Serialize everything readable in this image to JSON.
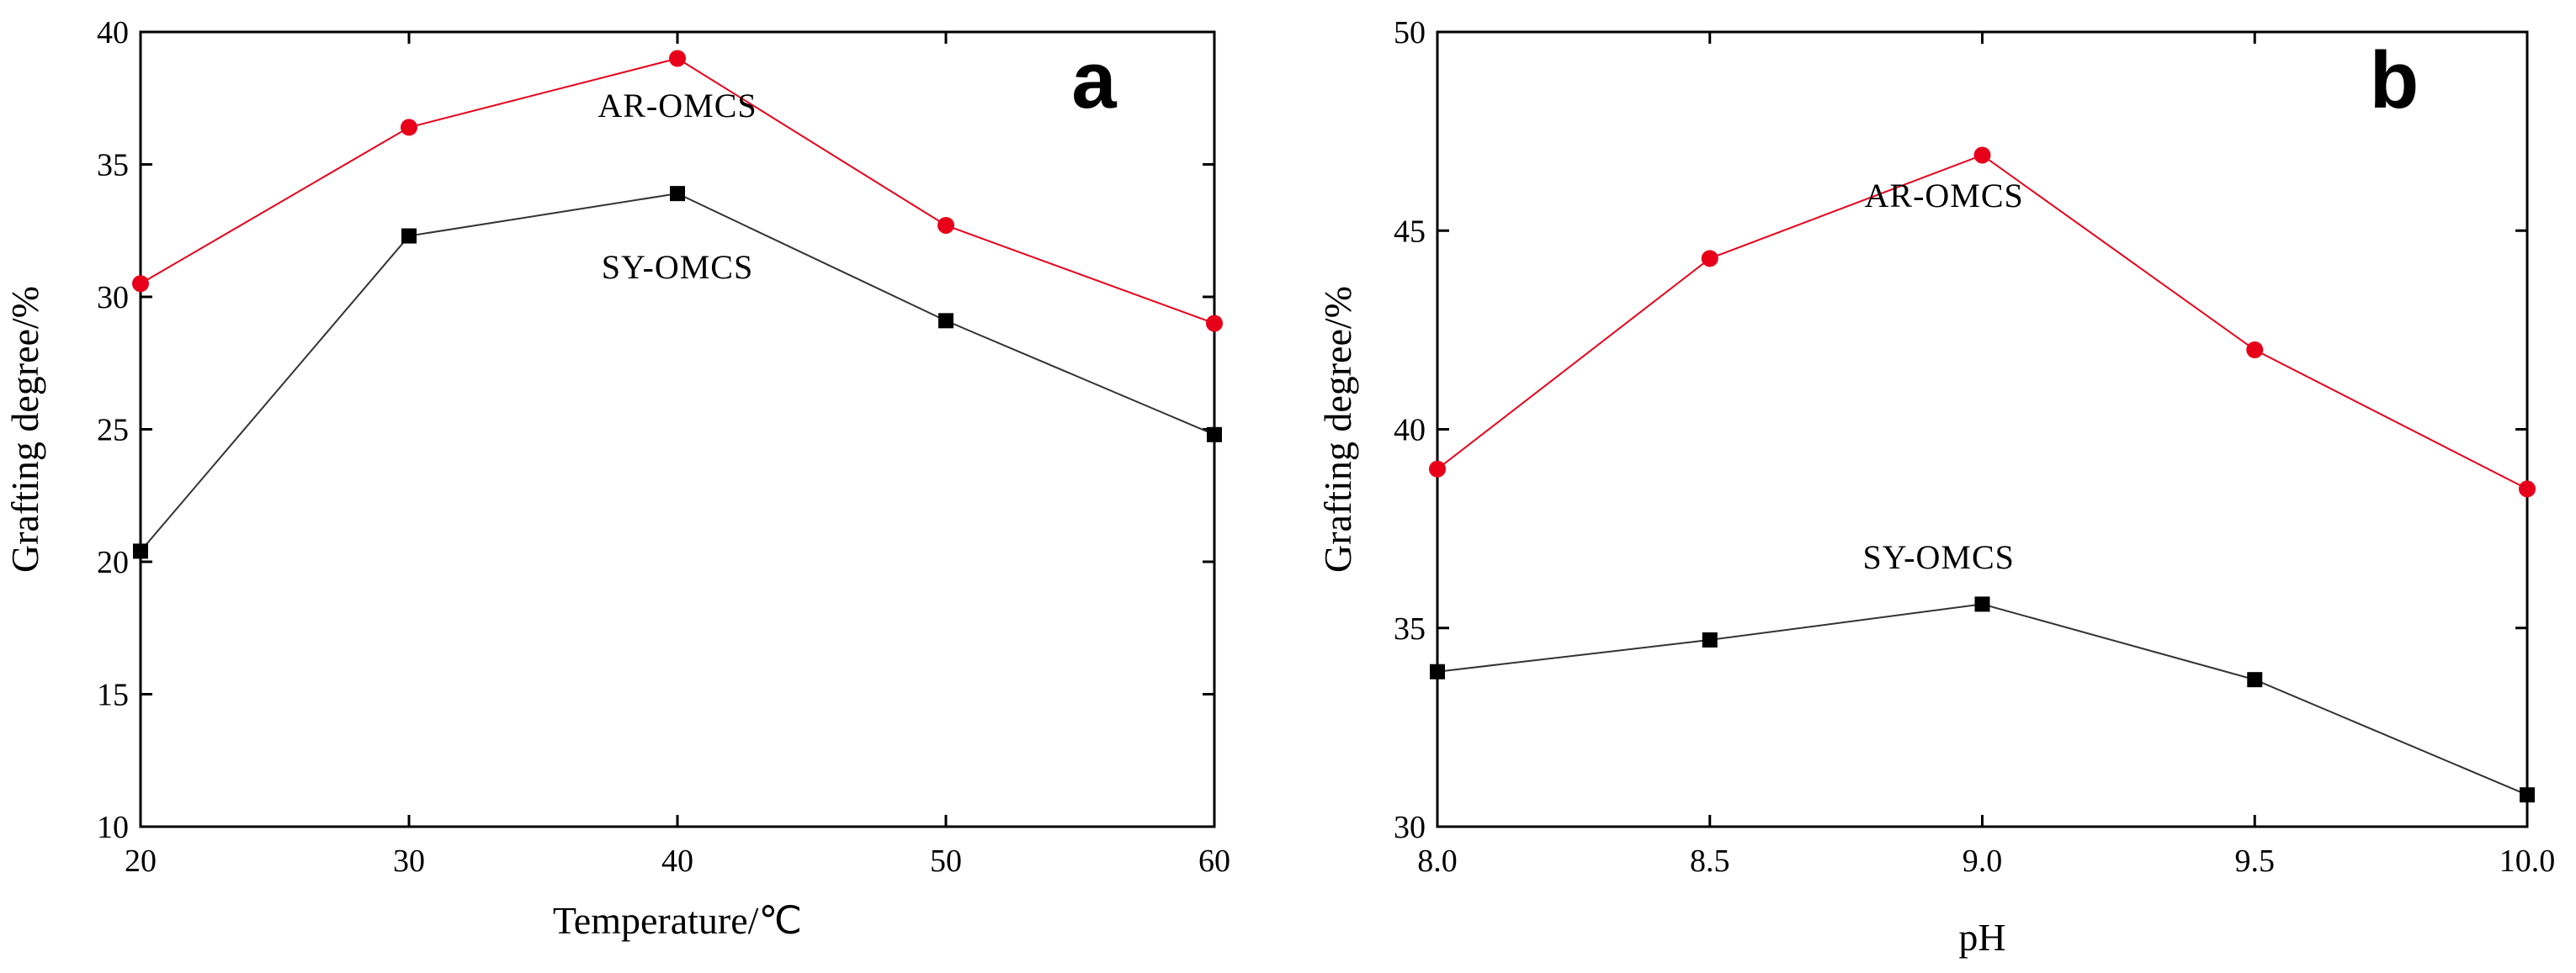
{
  "chart_data": [
    {
      "panel": "a",
      "type": "line",
      "xlabel": "Temperature/℃",
      "ylabel": "Grafting degree/%",
      "xlim": [
        20,
        60
      ],
      "ylim": [
        10,
        40
      ],
      "xticks": [
        20,
        30,
        40,
        50,
        60
      ],
      "yticks": [
        10,
        15,
        20,
        25,
        30,
        35,
        40
      ],
      "x": [
        20,
        30,
        40,
        50,
        60
      ],
      "series": [
        {
          "name": "AR-OMCS",
          "color": "#e8001a",
          "marker": "circle",
          "values": [
            30.5,
            36.4,
            39.0,
            32.7,
            29.0
          ],
          "label_at": [
            40,
            36.8
          ]
        },
        {
          "name": "SY-OMCS",
          "color": "#000000",
          "marker": "square",
          "values": [
            20.4,
            32.3,
            33.9,
            29.1,
            24.8
          ],
          "label_at": [
            40,
            30.7
          ]
        }
      ]
    },
    {
      "panel": "b",
      "type": "line",
      "xlabel": "pH",
      "ylabel": "Grafting degree/%",
      "xlim": [
        8.0,
        10.0
      ],
      "ylim": [
        30,
        50
      ],
      "xticks": [
        "8.0",
        "8.5",
        "9.0",
        "9.5",
        "10.0"
      ],
      "yticks": [
        30,
        35,
        40,
        45,
        50
      ],
      "x": [
        8.0,
        8.5,
        9.0,
        9.5,
        10.0
      ],
      "series": [
        {
          "name": "AR-OMCS",
          "color": "#e8001a",
          "marker": "circle",
          "values": [
            39.0,
            44.3,
            46.9,
            42.0,
            38.5
          ],
          "label_at": [
            8.93,
            45.6
          ]
        },
        {
          "name": "SY-OMCS",
          "color": "#000000",
          "marker": "square",
          "values": [
            33.9,
            34.7,
            35.6,
            33.7,
            30.8
          ],
          "label_at": [
            8.92,
            36.5
          ]
        }
      ]
    }
  ]
}
